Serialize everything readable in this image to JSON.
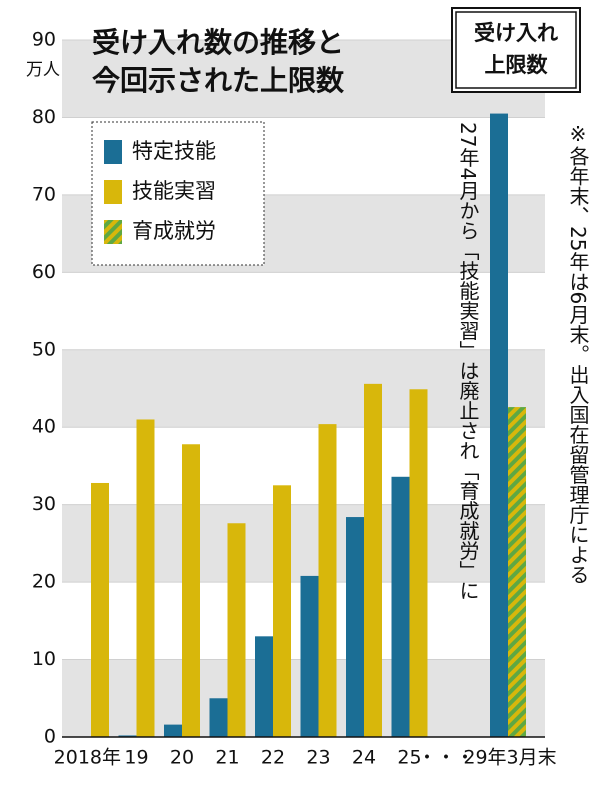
{
  "chart_data": {
    "type": "bar",
    "title": [
      "受け入れ数の推移と",
      "今回示された上限数"
    ],
    "y_unit": "万人",
    "limit_box": [
      "受け入れ",
      "上限数"
    ],
    "annotation": "27年4月から「技能実習」は廃止され「育成就労」に",
    "note": "※各年末、25年は6月末。出入国在留管理庁による",
    "ellipsis": "・・・",
    "categories": [
      "2018年",
      "19",
      "20",
      "21",
      "22",
      "23",
      "24",
      "25",
      "29年3月末"
    ],
    "series": [
      {
        "name": "特定技能",
        "color": "#1b6e95",
        "values": [
          null,
          0.2,
          1.6,
          5,
          13,
          20.8,
          28.4,
          33.6,
          80.5
        ]
      },
      {
        "name": "技能実習",
        "color": "#d8b70b",
        "values": [
          32.8,
          41,
          37.8,
          27.6,
          32.5,
          40.4,
          45.6,
          44.9,
          null
        ]
      },
      {
        "name": "育成就労",
        "color": "#5ea843",
        "values": [
          null,
          null,
          null,
          null,
          null,
          null,
          null,
          null,
          42.6
        ]
      }
    ],
    "ylim": [
      0,
      90
    ],
    "yticks": [
      0,
      10,
      20,
      30,
      40,
      50,
      60,
      70,
      80,
      90
    ],
    "grid": true
  }
}
